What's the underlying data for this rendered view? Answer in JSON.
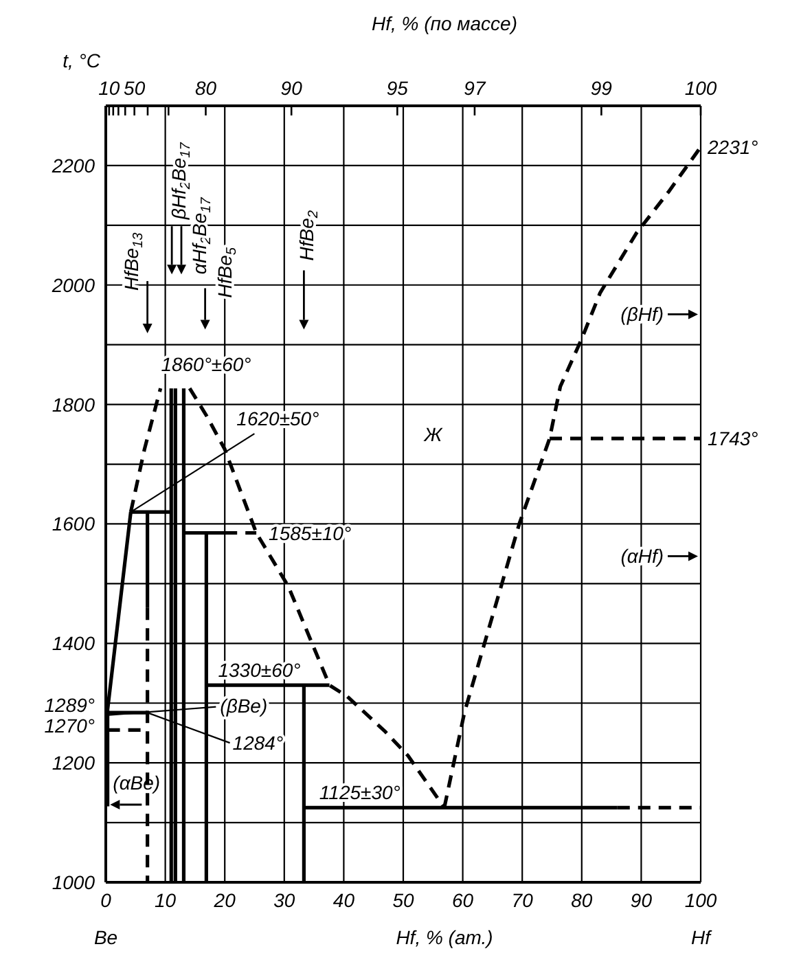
{
  "chart_data": {
    "type": "line",
    "xlabel": "Hf, % (ат.)",
    "ylabel": "t, °C",
    "x2label": "Hf, % (по массе)",
    "xlim": [
      0,
      100
    ],
    "xticks": [
      0,
      10,
      20,
      30,
      40,
      50,
      60,
      70,
      80,
      90,
      100
    ],
    "ylim": [
      1000,
      2300
    ],
    "yticks": [
      1000,
      {
        "value": 1100,
        "label": null
      },
      1200,
      {
        "value": 1270,
        "label": "1270°"
      },
      {
        "value": 1289,
        "label": "1289°"
      },
      {
        "value": 1300,
        "label": null
      },
      1400,
      {
        "value": 1500,
        "label": null
      },
      1600,
      {
        "value": 1700,
        "label": null
      },
      1800,
      {
        "value": 1900,
        "label": null
      },
      2000,
      {
        "value": 2100,
        "label": null
      },
      2200
    ],
    "grid": true,
    "series": [
      {
        "color": "#000000",
        "line_style": "solid",
        "x": [
          4.2,
          0.3,
          0.3
        ],
        "values": [
          1620,
          1289,
          1127
        ]
      },
      {
        "color": "#000000",
        "line_style": "dashed",
        "x": [
          4.2,
          6.5,
          9.2
        ],
        "values": [
          1620,
          1725,
          1827
        ]
      },
      {
        "color": "#000000",
        "line_style": "dashed",
        "x": [
          14.1,
          17,
          20,
          25.3,
          30.7,
          37.6,
          40.6,
          46.9,
          50.8,
          56.9
        ],
        "values": [
          1827,
          1780,
          1725,
          1585,
          1495,
          1330,
          1311,
          1253,
          1212,
          1125
        ]
      },
      {
        "color": "#000000",
        "line_style": "solid",
        "x": [
          4.2,
          11
        ],
        "values": [
          1620,
          1620
        ]
      },
      {
        "color": "#000000",
        "line_style": "solid",
        "x": [
          7,
          7
        ],
        "values": [
          1620,
          1460
        ]
      },
      {
        "color": "#000000",
        "line_style": "dashed",
        "x": [
          7,
          7
        ],
        "values": [
          1460,
          1000
        ]
      },
      {
        "color": "#000000",
        "line_style": "solid",
        "x": [
          11,
          11
        ],
        "values": [
          1827,
          1000
        ]
      },
      {
        "color": "#000000",
        "line_style": "solid",
        "x": [
          11.7,
          11.7
        ],
        "values": [
          1827,
          1000
        ]
      },
      {
        "color": "#000000",
        "line_style": "solid",
        "x": [
          13.1,
          13.1
        ],
        "values": [
          1827,
          1000
        ]
      },
      {
        "color": "#000000",
        "line_style": "solid",
        "x": [
          13.1,
          20
        ],
        "values": [
          1585,
          1585
        ]
      },
      {
        "color": "#000000",
        "line_style": "dashed",
        "x": [
          20,
          25.3
        ],
        "values": [
          1585,
          1585
        ]
      },
      {
        "color": "#000000",
        "line_style": "solid",
        "x": [
          16.9,
          16.9
        ],
        "values": [
          1585,
          1000
        ]
      },
      {
        "color": "#000000",
        "line_style": "solid",
        "x": [
          16.9,
          37.6
        ],
        "values": [
          1330,
          1330
        ]
      },
      {
        "color": "#000000",
        "line_style": "solid",
        "x": [
          33.3,
          33.3
        ],
        "values": [
          1330,
          1000
        ]
      },
      {
        "color": "#000000",
        "line_style": "solid",
        "x": [
          33.3,
          86
        ],
        "values": [
          1125,
          1125
        ]
      },
      {
        "color": "#000000",
        "line_style": "dashed",
        "x": [
          86,
          100
        ],
        "values": [
          1125,
          1125
        ]
      },
      {
        "color": "#000000",
        "line_style": "dashed",
        "x": [
          56.9,
          60.3,
          69.5,
          74.6,
          76.4,
          80,
          83.1,
          89.2,
          94.6,
          100
        ],
        "values": [
          1125,
          1285,
          1600,
          1743,
          1830,
          1910,
          1987,
          2087,
          2156,
          2231
        ]
      },
      {
        "color": "#000000",
        "line_style": "dashed",
        "x": [
          74.6,
          100
        ],
        "values": [
          1743,
          1743
        ]
      },
      {
        "color": "#000000",
        "line_style": "solid",
        "x": [
          0.3,
          7
        ],
        "values": [
          1284,
          1284
        ]
      },
      {
        "color": "#000000",
        "line_style": "dashed",
        "x": [
          0.3,
          7
        ],
        "values": [
          1255,
          1255
        ]
      }
    ],
    "annotations": [
      "HfBe$_{13}$",
      "βHf$_{2}$Be$_{17}$",
      "αHf$_{2}$Be$_{17}$",
      "HfBe$_{5}$",
      "HfBe$_{2}$",
      "1860°±60°",
      {
        "text": "1620±50°",
        "x": 4.2,
        "y": 1620
      },
      {
        "text": "1585±10°",
        "x": 25.3,
        "y": 1585
      },
      {
        "text": "1330±60°",
        "x": 26.5,
        "y": 1330
      },
      {
        "text": "1125±30°",
        "x": 42.7,
        "y": 1125
      },
      {
        "text": "(βBe)",
        "x": 0.5,
        "y": 1280
      },
      {
        "text": "1284°",
        "x": 7,
        "y": 1284
      },
      "(αBe)",
      "Ж",
      "(βHf)",
      "(αHf)",
      {
        "text": "1743°",
        "x": 100,
        "y": 1743
      },
      {
        "text": "2231°",
        "x": 100,
        "y": 2231
      },
      "Be",
      "Hf",
      "10",
      "50",
      "80",
      "90",
      "95",
      "97",
      "99",
      "100"
    ]
  }
}
